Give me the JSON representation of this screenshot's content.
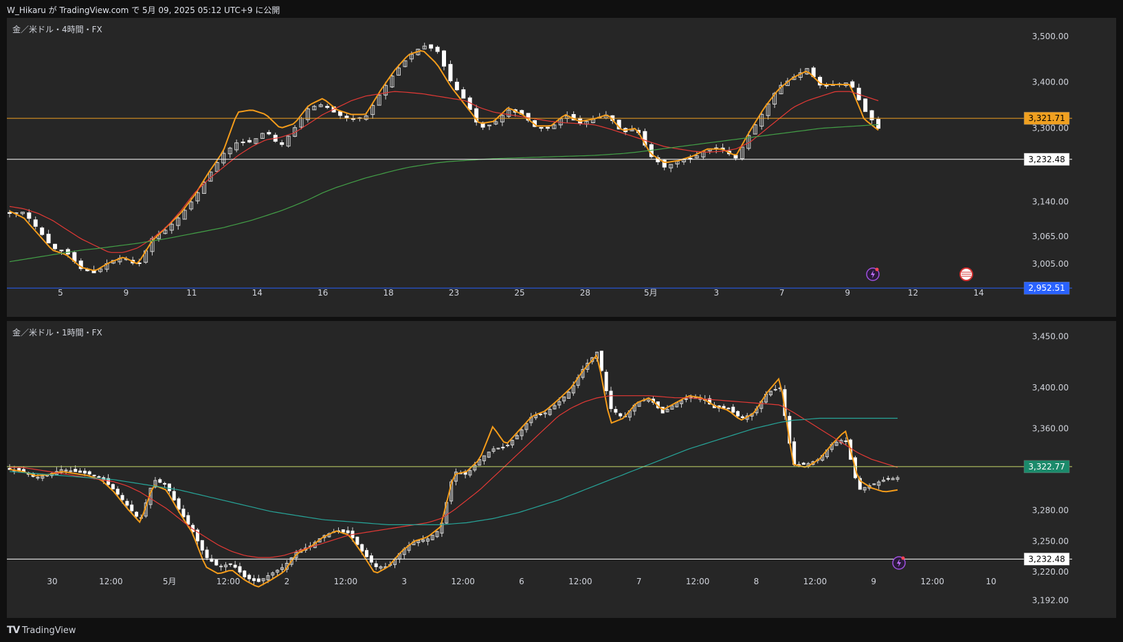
{
  "header": {
    "publish_info": "W_Hikaru が TradingView.com で 5月 09, 2025 05:12 UTC+9 に公開"
  },
  "footer": {
    "brand": "TradingView"
  },
  "chart_data": [
    {
      "type": "candlestick",
      "title": "金／米ドル・4時間・FX",
      "ylim": [
        2890,
        3540
      ],
      "y_ticks": [
        "3,500.00",
        "3,400.00",
        "3,300.00",
        "3,140.00",
        "3,065.00",
        "3,005.00"
      ],
      "y_tick_values": [
        3500,
        3400,
        3300,
        3140,
        3065,
        3005
      ],
      "x_ticks": [
        "5",
        "9",
        "11",
        "14",
        "16",
        "18",
        "23",
        "25",
        "28",
        "5月",
        "3",
        "7",
        "9",
        "12",
        "14"
      ],
      "horizontal_levels": [
        {
          "value": 3321.71,
          "label": "3,321.71",
          "color": "#f0a020"
        },
        {
          "value": 3232.48,
          "label": "3,232.48",
          "color": "#ffffff"
        },
        {
          "value": 2952.51,
          "label": "2,952.51",
          "color": "#2962ff"
        }
      ],
      "close_anchors": [
        3115,
        3118,
        3080,
        3040,
        3030,
        2995,
        2985,
        3010,
        3020,
        3000,
        3060,
        3080,
        3110,
        3150,
        3200,
        3245,
        3270,
        3270,
        3295,
        3260,
        3300,
        3345,
        3352,
        3330,
        3320,
        3325,
        3375,
        3420,
        3455,
        3480,
        3470,
        3400,
        3360,
        3300,
        3310,
        3340,
        3330,
        3300,
        3300,
        3330,
        3310,
        3320,
        3330,
        3290,
        3300,
        3240,
        3215,
        3230,
        3235,
        3255,
        3255,
        3235,
        3290,
        3340,
        3390,
        3410,
        3430,
        3390,
        3395,
        3400,
        3340,
        3300
      ],
      "series": [
        {
          "name": "",
          "color": "#f59c1a",
          "values": [
            3120,
            3105,
            3070,
            3035,
            3025,
            2998,
            2990,
            3008,
            3020,
            3005,
            3055,
            3085,
            3115,
            3155,
            3205,
            3250,
            3335,
            3340,
            3330,
            3300,
            3310,
            3350,
            3365,
            3340,
            3330,
            3330,
            3380,
            3425,
            3460,
            3470,
            3440,
            3390,
            3350,
            3310,
            3315,
            3345,
            3330,
            3305,
            3305,
            3330,
            3315,
            3320,
            3330,
            3295,
            3300,
            3245,
            3225,
            3230,
            3240,
            3255,
            3255,
            3240,
            3295,
            3345,
            3385,
            3410,
            3425,
            3395,
            3395,
            3395,
            3320,
            3296
          ]
        },
        {
          "name": "",
          "color": "#e53935",
          "values": [
            3130,
            3125,
            3115,
            3100,
            3080,
            3060,
            3045,
            3030,
            3030,
            3040,
            3060,
            3085,
            3120,
            3160,
            3190,
            3215,
            3240,
            3260,
            3275,
            3280,
            3290,
            3310,
            3330,
            3345,
            3360,
            3370,
            3375,
            3380,
            3378,
            3375,
            3370,
            3365,
            3360,
            3345,
            3335,
            3330,
            3325,
            3320,
            3315,
            3312,
            3310,
            3308,
            3300,
            3290,
            3280,
            3270,
            3260,
            3255,
            3250,
            3248,
            3250,
            3255,
            3270,
            3295,
            3320,
            3345,
            3360,
            3370,
            3380,
            3380,
            3370,
            3360
          ]
        },
        {
          "name": "",
          "color": "#43a047",
          "values": [
            3010,
            3015,
            3020,
            3025,
            3030,
            3035,
            3038,
            3042,
            3046,
            3050,
            3055,
            3060,
            3066,
            3072,
            3078,
            3084,
            3092,
            3100,
            3110,
            3120,
            3132,
            3145,
            3160,
            3172,
            3182,
            3192,
            3200,
            3208,
            3215,
            3220,
            3225,
            3228,
            3230,
            3232,
            3234,
            3235,
            3236,
            3237,
            3238,
            3239,
            3240,
            3241,
            3243,
            3245,
            3248,
            3252,
            3256,
            3260,
            3264,
            3268,
            3272,
            3276,
            3280,
            3284,
            3288,
            3292,
            3296,
            3300,
            3302,
            3304,
            3306,
            3308
          ]
        }
      ]
    },
    {
      "type": "candlestick",
      "title": "金／米ドル・1時間・FX",
      "ylim": [
        3175,
        3465
      ],
      "y_ticks": [
        "3,450.00",
        "3,400.00",
        "3,360.00",
        "3,280.00",
        "3,250.00",
        "3,220.00",
        "3,192.00"
      ],
      "y_tick_values": [
        3450,
        3400,
        3360,
        3280,
        3250,
        3220,
        3192
      ],
      "x_ticks": [
        "30",
        "12:00",
        "5月",
        "12:00",
        "2",
        "12:00",
        "3",
        "12:00",
        "6",
        "12:00",
        "7",
        "12:00",
        "8",
        "12:00",
        "9",
        "12:00",
        "10"
      ],
      "horizontal_levels": [
        {
          "value": 3322.77,
          "label": "3,322.77",
          "color": "#c8d96a"
        },
        {
          "value": 3232.48,
          "label": "3,232.48",
          "color": "#ffffff"
        }
      ],
      "close_anchors": [
        3320,
        3318,
        3312,
        3315,
        3320,
        3318,
        3316,
        3312,
        3300,
        3285,
        3270,
        3310,
        3305,
        3280,
        3260,
        3235,
        3225,
        3228,
        3215,
        3210,
        3218,
        3225,
        3240,
        3245,
        3255,
        3260,
        3258,
        3240,
        3225,
        3225,
        3240,
        3250,
        3252,
        3262,
        3318,
        3315,
        3330,
        3340,
        3342,
        3355,
        3372,
        3375,
        3385,
        3398,
        3420,
        3435,
        3380,
        3370,
        3385,
        3390,
        3375,
        3385,
        3390,
        3390,
        3380,
        3380,
        3370,
        3375,
        3395,
        3400,
        3325,
        3325,
        3330,
        3345,
        3350,
        3300,
        3305,
        3310,
        3312
      ],
      "series": [
        {
          "name": "",
          "color": "#f59c1a",
          "values": [
            3320,
            3318,
            3314,
            3315,
            3318,
            3316,
            3314,
            3310,
            3298,
            3282,
            3268,
            3305,
            3300,
            3278,
            3258,
            3225,
            3218,
            3222,
            3212,
            3205,
            3212,
            3220,
            3238,
            3244,
            3254,
            3260,
            3256,
            3238,
            3218,
            3225,
            3240,
            3250,
            3254,
            3264,
            3315,
            3318,
            3330,
            3362,
            3344,
            3358,
            3372,
            3377,
            3388,
            3400,
            3418,
            3432,
            3365,
            3370,
            3385,
            3390,
            3378,
            3385,
            3392,
            3390,
            3382,
            3378,
            3368,
            3375,
            3395,
            3410,
            3325,
            3322,
            3330,
            3345,
            3358,
            3310,
            3302,
            3298,
            3300
          ]
        },
        {
          "name": "",
          "color": "#e53935",
          "values": [
            3322,
            3322,
            3320,
            3318,
            3316,
            3314,
            3312,
            3310,
            3308,
            3304,
            3298,
            3290,
            3282,
            3272,
            3262,
            3254,
            3246,
            3240,
            3236,
            3234,
            3234,
            3236,
            3240,
            3244,
            3248,
            3252,
            3256,
            3258,
            3260,
            3262,
            3264,
            3266,
            3268,
            3272,
            3280,
            3290,
            3300,
            3312,
            3324,
            3336,
            3348,
            3360,
            3372,
            3380,
            3386,
            3390,
            3392,
            3392,
            3392,
            3392,
            3391,
            3390,
            3390,
            3389,
            3388,
            3387,
            3386,
            3385,
            3384,
            3383,
            3376,
            3368,
            3360,
            3352,
            3344,
            3336,
            3330,
            3326,
            3322
          ]
        },
        {
          "name": "",
          "color": "#26a69a",
          "values": [
            3318,
            3317,
            3316,
            3315,
            3314,
            3313,
            3312,
            3311,
            3310,
            3308,
            3306,
            3304,
            3302,
            3300,
            3297,
            3294,
            3291,
            3288,
            3285,
            3282,
            3279,
            3277,
            3275,
            3273,
            3271,
            3270,
            3269,
            3268,
            3267,
            3266,
            3266,
            3266,
            3266,
            3266,
            3267,
            3268,
            3270,
            3272,
            3275,
            3278,
            3282,
            3286,
            3290,
            3295,
            3300,
            3305,
            3310,
            3315,
            3320,
            3325,
            3330,
            3335,
            3340,
            3344,
            3348,
            3352,
            3356,
            3360,
            3363,
            3366,
            3368,
            3369,
            3370,
            3370,
            3370,
            3370,
            3370,
            3370,
            3370
          ]
        }
      ]
    }
  ]
}
